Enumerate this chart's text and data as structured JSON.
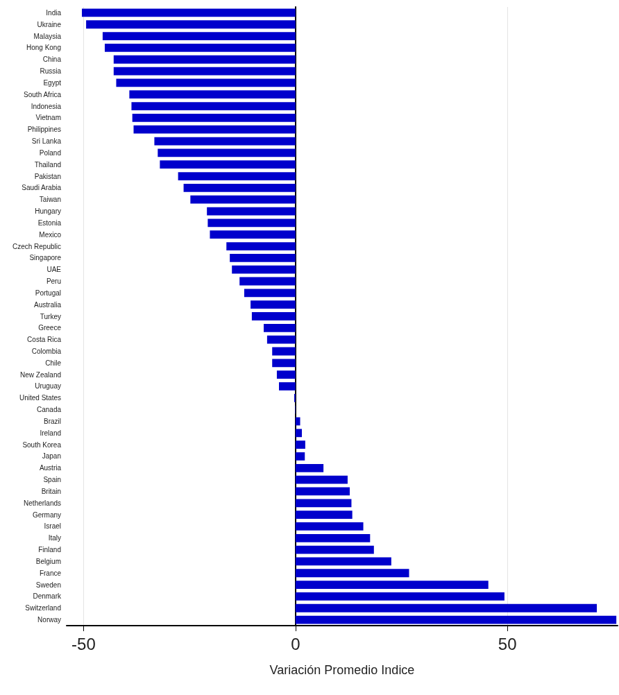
{
  "chart_data": {
    "type": "bar",
    "orientation": "horizontal",
    "xlabel": "Variación Promedio Indice",
    "categories": [
      "India",
      "Ukraine",
      "Malaysia",
      "Hong Kong",
      "China",
      "Russia",
      "Egypt",
      "South Africa",
      "Indonesia",
      "Vietnam",
      "Philippines",
      "Sri Lanka",
      "Poland",
      "Thailand",
      "Pakistan",
      "Saudi Arabia",
      "Taiwan",
      "Hungary",
      "Estonia",
      "Mexico",
      "Czech Republic",
      "Singapore",
      "UAE",
      "Peru",
      "Portugal",
      "Australia",
      "Turkey",
      "Greece",
      "Costa Rica",
      "Colombia",
      "Chile",
      "New Zealand",
      "Uruguay",
      "United States",
      "Canada",
      "Brazil",
      "Ireland",
      "South Korea",
      "Japan",
      "Austria",
      "Spain",
      "Britain",
      "Netherlands",
      "Germany",
      "Israel",
      "Italy",
      "Finland",
      "Belgium",
      "France",
      "Sweden",
      "Denmark",
      "Switzerland",
      "Norway"
    ],
    "values": [
      -50.4,
      -49.4,
      -45.5,
      -45,
      -42.9,
      -42.9,
      -42.3,
      -39.2,
      -38.7,
      -38.5,
      -38.2,
      -33.3,
      -32.5,
      -32,
      -27.7,
      -26.4,
      -24.8,
      -20.9,
      -20.7,
      -20.2,
      -16.3,
      -15.5,
      -15,
      -13.2,
      -12.1,
      -10.6,
      -10.3,
      -7.5,
      -6.7,
      -5.5,
      -5.5,
      -4.4,
      -3.9,
      -0.3,
      -0.1,
      1.1,
      1.5,
      2.3,
      2.2,
      6.6,
      12.3,
      12.8,
      13.2,
      13.4,
      16,
      17.6,
      18.5,
      22.6,
      26.8,
      45.5,
      49.3,
      71.1,
      75.7
    ],
    "color": "#0000cc",
    "xlim": [
      -54,
      76
    ],
    "xticks": [
      -50,
      0,
      50
    ],
    "grid": "x"
  }
}
